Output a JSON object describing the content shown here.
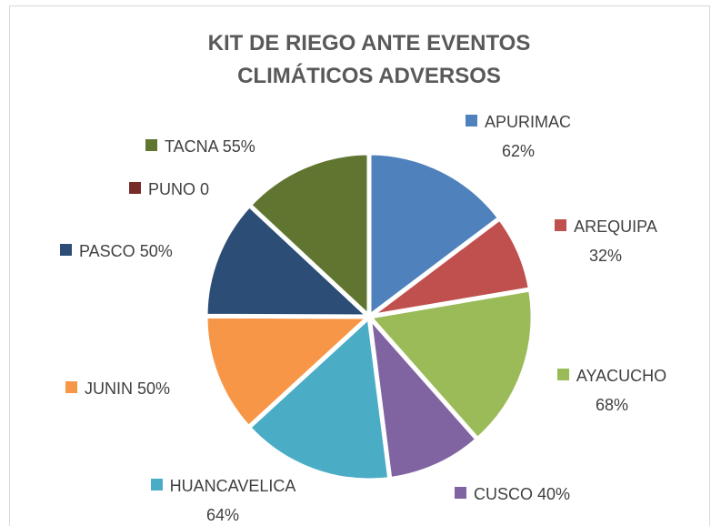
{
  "chart_data": {
    "type": "pie",
    "title": "KIT DE RIEGO ANTE EVENTOS CLIMÁTICOS ADVERSOS",
    "categories": [
      "APURIMAC",
      "AREQUIPA",
      "AYACUCHO",
      "CUSCO",
      "HUANCAVELICA",
      "JUNIN",
      "PASCO",
      "PUNO",
      "TACNA"
    ],
    "values": [
      62,
      32,
      68,
      40,
      64,
      50,
      50,
      0,
      55
    ],
    "value_labels": [
      "62%",
      "32%",
      "68%",
      "40%",
      "64%",
      "50%",
      "50%",
      "0",
      "55%"
    ],
    "colors": [
      "#4f81bd",
      "#c0504d",
      "#9bbb59",
      "#8064a2",
      "#4bacc6",
      "#f79646",
      "#2c4d75",
      "#772c2a",
      "#5f7530"
    ]
  }
}
